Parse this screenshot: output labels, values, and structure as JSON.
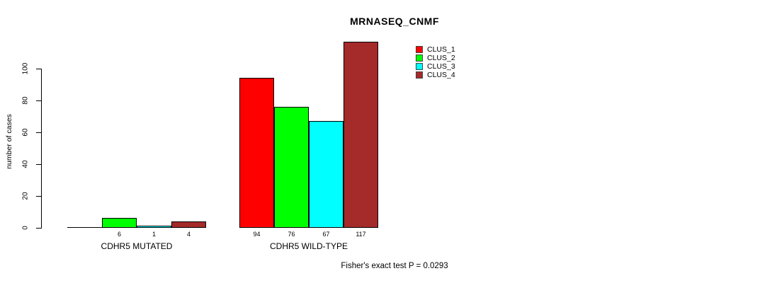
{
  "title": "MRNASEQ_CNMF",
  "ylabel": "number of cases",
  "footer": "Fisher's exact test P = 0.0293",
  "colors": {
    "clus1": "#FF0000",
    "clus2": "#00FF00",
    "clus3": "#00FFFF",
    "clus4": "#A52A2A",
    "axis": "#000000",
    "background": "#FFFFFF"
  },
  "legend": {
    "position": "top-right-inside",
    "entries": [
      {
        "label": "CLUS_1",
        "color": "#FF0000"
      },
      {
        "label": "CLUS_2",
        "color": "#00FF00"
      },
      {
        "label": "CLUS_3",
        "color": "#00FFFF"
      },
      {
        "label": "CLUS_4",
        "color": "#A52A2A"
      }
    ]
  },
  "chart_data": {
    "type": "bar",
    "grouped": true,
    "title": "MRNASEQ_CNMF",
    "xlabel": "",
    "ylabel": "number of cases",
    "categories": [
      "CDHR5 MUTATED",
      "CDHR5 WILD-TYPE"
    ],
    "series": [
      {
        "name": "CLUS_1",
        "color": "#FF0000",
        "values": [
          0,
          94
        ]
      },
      {
        "name": "CLUS_2",
        "color": "#00FF00",
        "values": [
          6,
          76
        ]
      },
      {
        "name": "CLUS_3",
        "color": "#00FFFF",
        "values": [
          1,
          67
        ]
      },
      {
        "name": "CLUS_4",
        "color": "#A52A2A",
        "values": [
          4,
          117
        ]
      }
    ],
    "bar_labels_shown": [
      [
        "",
        "6",
        "1",
        "4"
      ],
      [
        "94",
        "76",
        "67",
        "117"
      ]
    ],
    "yticks": [
      0,
      20,
      40,
      60,
      80,
      100
    ],
    "ylim": [
      0,
      120
    ],
    "grid": false,
    "legend_position": "top-right",
    "annotation": "Fisher's exact test P = 0.0293"
  }
}
